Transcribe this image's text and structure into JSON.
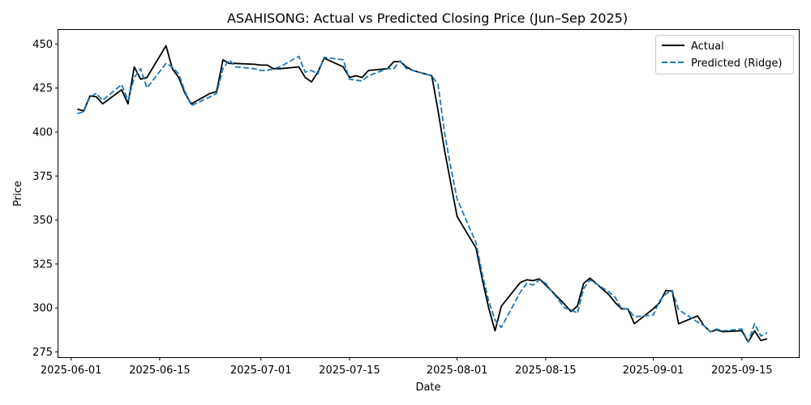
{
  "chart_data": {
    "type": "line",
    "title": "ASAHISONG: Actual vs Predicted Closing Price (Jun–Sep 2025)",
    "xlabel": "Date",
    "ylabel": "Price",
    "xlim": [
      "2025-05-30",
      "2025-09-24"
    ],
    "ylim": [
      272,
      458
    ],
    "x_ticks": [
      "2025-06-01",
      "2025-06-15",
      "2025-07-01",
      "2025-07-15",
      "2025-08-01",
      "2025-08-15",
      "2025-09-01",
      "2025-09-15"
    ],
    "y_ticks": [
      275,
      300,
      325,
      350,
      375,
      400,
      425,
      450
    ],
    "grid": false,
    "legend_position": "top-right",
    "series": [
      {
        "name": "Actual",
        "color": "#000000",
        "style": "solid",
        "points": [
          [
            "2025-06-02",
            413
          ],
          [
            "2025-06-03",
            412
          ],
          [
            "2025-06-04",
            420.5
          ],
          [
            "2025-06-05",
            420
          ],
          [
            "2025-06-06",
            416
          ],
          [
            "2025-06-09",
            424
          ],
          [
            "2025-06-10",
            416
          ],
          [
            "2025-06-11",
            437
          ],
          [
            "2025-06-12",
            430
          ],
          [
            "2025-06-13",
            431
          ],
          [
            "2025-06-16",
            449
          ],
          [
            "2025-06-17",
            436
          ],
          [
            "2025-06-18",
            431
          ],
          [
            "2025-06-19",
            422
          ],
          [
            "2025-06-20",
            416
          ],
          [
            "2025-06-23",
            422
          ],
          [
            "2025-06-24",
            423
          ],
          [
            "2025-06-25",
            441
          ],
          [
            "2025-06-26",
            439
          ],
          [
            "2025-06-27",
            439
          ],
          [
            "2025-06-30",
            438.5
          ],
          [
            "2025-07-01",
            438
          ],
          [
            "2025-07-02",
            438
          ],
          [
            "2025-07-03",
            436
          ],
          [
            "2025-07-04",
            436
          ],
          [
            "2025-07-07",
            437
          ],
          [
            "2025-07-08",
            431
          ],
          [
            "2025-07-09",
            428.5
          ],
          [
            "2025-07-10",
            434
          ],
          [
            "2025-07-11",
            442
          ],
          [
            "2025-07-14",
            437
          ],
          [
            "2025-07-15",
            431
          ],
          [
            "2025-07-16",
            432
          ],
          [
            "2025-07-17",
            431
          ],
          [
            "2025-07-18",
            435
          ],
          [
            "2025-07-21",
            436
          ],
          [
            "2025-07-22",
            440
          ],
          [
            "2025-07-23",
            440
          ],
          [
            "2025-07-24",
            437
          ],
          [
            "2025-07-25",
            435
          ],
          [
            "2025-07-28",
            432
          ],
          [
            "2025-07-29",
            412
          ],
          [
            "2025-07-30",
            390
          ],
          [
            "2025-07-31",
            371
          ],
          [
            "2025-08-01",
            352
          ],
          [
            "2025-08-04",
            334
          ],
          [
            "2025-08-05",
            316
          ],
          [
            "2025-08-06",
            300
          ],
          [
            "2025-08-07",
            287
          ],
          [
            "2025-08-08",
            301
          ],
          [
            "2025-08-11",
            314.5
          ],
          [
            "2025-08-12",
            316
          ],
          [
            "2025-08-13",
            315.5
          ],
          [
            "2025-08-14",
            316.5
          ],
          [
            "2025-08-15",
            313
          ],
          [
            "2025-08-18",
            302
          ],
          [
            "2025-08-19",
            298
          ],
          [
            "2025-08-20",
            301
          ],
          [
            "2025-08-21",
            314
          ],
          [
            "2025-08-22",
            317
          ],
          [
            "2025-08-25",
            307.5
          ],
          [
            "2025-08-26",
            303
          ],
          [
            "2025-08-27",
            299.5
          ],
          [
            "2025-08-28",
            299.5
          ],
          [
            "2025-08-29",
            291
          ],
          [
            "2025-09-01",
            299.5
          ],
          [
            "2025-09-02",
            303
          ],
          [
            "2025-09-03",
            310
          ],
          [
            "2025-09-04",
            309.5
          ],
          [
            "2025-09-05",
            291
          ],
          [
            "2025-09-08",
            295.5
          ],
          [
            "2025-09-09",
            290
          ],
          [
            "2025-09-10",
            286.5
          ],
          [
            "2025-09-11",
            287.5
          ],
          [
            "2025-09-12",
            286.5
          ],
          [
            "2025-09-15",
            287
          ],
          [
            "2025-09-16",
            280.5
          ],
          [
            "2025-09-17",
            287
          ],
          [
            "2025-09-18",
            281.5
          ],
          [
            "2025-09-19",
            282.5
          ]
        ]
      },
      {
        "name": "Predicted (Ridge)",
        "color": "#1f77b4",
        "style": "dashed",
        "points": [
          [
            "2025-06-02",
            410.5
          ],
          [
            "2025-06-03",
            411.5
          ],
          [
            "2025-06-04",
            420
          ],
          [
            "2025-06-05",
            422
          ],
          [
            "2025-06-06",
            418
          ],
          [
            "2025-06-09",
            427
          ],
          [
            "2025-06-10",
            418
          ],
          [
            "2025-06-11",
            431
          ],
          [
            "2025-06-12",
            436
          ],
          [
            "2025-06-13",
            425
          ],
          [
            "2025-06-16",
            439
          ],
          [
            "2025-06-17",
            437
          ],
          [
            "2025-06-18",
            433
          ],
          [
            "2025-06-19",
            423
          ],
          [
            "2025-06-20",
            415
          ],
          [
            "2025-06-23",
            420
          ],
          [
            "2025-06-24",
            422
          ],
          [
            "2025-06-25",
            436
          ],
          [
            "2025-06-26",
            441
          ],
          [
            "2025-06-27",
            437
          ],
          [
            "2025-06-30",
            436
          ],
          [
            "2025-07-01",
            435
          ],
          [
            "2025-07-02",
            435
          ],
          [
            "2025-07-03",
            436
          ],
          [
            "2025-07-04",
            437
          ],
          [
            "2025-07-07",
            443
          ],
          [
            "2025-07-08",
            434
          ],
          [
            "2025-07-09",
            435
          ],
          [
            "2025-07-10",
            433
          ],
          [
            "2025-07-11",
            442.5
          ],
          [
            "2025-07-14",
            441
          ],
          [
            "2025-07-15",
            430
          ],
          [
            "2025-07-16",
            429.5
          ],
          [
            "2025-07-17",
            429
          ],
          [
            "2025-07-18",
            432
          ],
          [
            "2025-07-21",
            436
          ],
          [
            "2025-07-22",
            436
          ],
          [
            "2025-07-23",
            440.5
          ],
          [
            "2025-07-24",
            436
          ],
          [
            "2025-07-25",
            435
          ],
          [
            "2025-07-28",
            432
          ],
          [
            "2025-07-29",
            427
          ],
          [
            "2025-07-30",
            400
          ],
          [
            "2025-07-31",
            380
          ],
          [
            "2025-08-01",
            362
          ],
          [
            "2025-08-04",
            337
          ],
          [
            "2025-08-05",
            319
          ],
          [
            "2025-08-06",
            304
          ],
          [
            "2025-08-07",
            293
          ],
          [
            "2025-08-08",
            289
          ],
          [
            "2025-08-11",
            309
          ],
          [
            "2025-08-12",
            314
          ],
          [
            "2025-08-13",
            313
          ],
          [
            "2025-08-14",
            316
          ],
          [
            "2025-08-15",
            314
          ],
          [
            "2025-08-18",
            300
          ],
          [
            "2025-08-19",
            299
          ],
          [
            "2025-08-20",
            297
          ],
          [
            "2025-08-21",
            311
          ],
          [
            "2025-08-22",
            316
          ],
          [
            "2025-08-25",
            309
          ],
          [
            "2025-08-26",
            306
          ],
          [
            "2025-08-27",
            299.5
          ],
          [
            "2025-08-28",
            299.5
          ],
          [
            "2025-08-29",
            295
          ],
          [
            "2025-09-01",
            296
          ],
          [
            "2025-09-02",
            304
          ],
          [
            "2025-09-03",
            308
          ],
          [
            "2025-09-04",
            310
          ],
          [
            "2025-09-05",
            299
          ],
          [
            "2025-09-08",
            292
          ],
          [
            "2025-09-09",
            290
          ],
          [
            "2025-09-10",
            286.5
          ],
          [
            "2025-09-11",
            288
          ],
          [
            "2025-09-12",
            287
          ],
          [
            "2025-09-15",
            288
          ],
          [
            "2025-09-16",
            280.5
          ],
          [
            "2025-09-17",
            291
          ],
          [
            "2025-09-18",
            284
          ],
          [
            "2025-09-19",
            286
          ]
        ]
      }
    ]
  }
}
